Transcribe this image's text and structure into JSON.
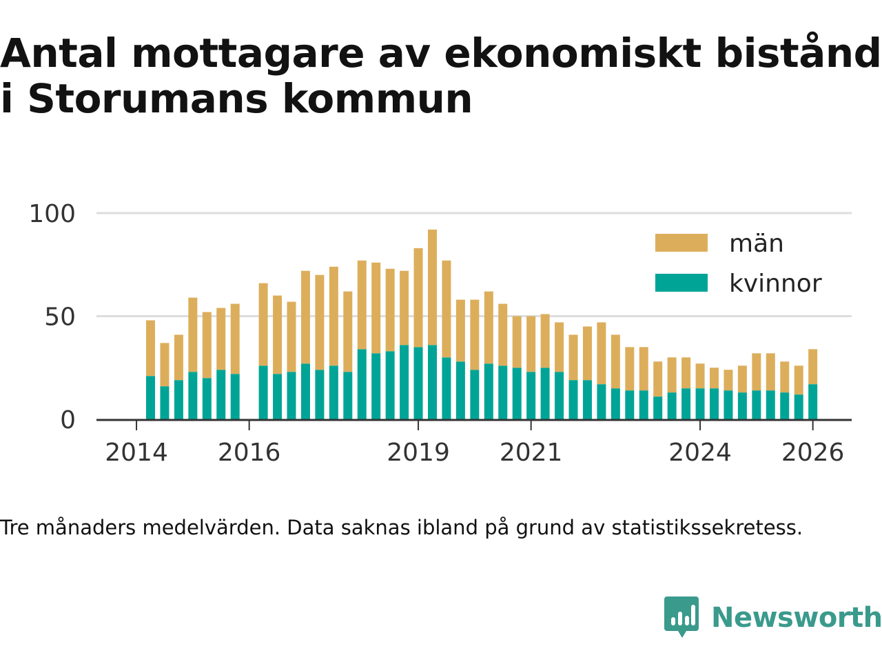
{
  "title": "Antal mottagare av ekonomiskt bistånd i Storumans kommun",
  "note": "Tre månaders medelvärden. Data saknas ibland på grund av statistikssekretess.",
  "brand": {
    "name": "Newsworthy",
    "color": "#3a9a8c",
    "icon": "newsworthy-logo-icon"
  },
  "colors": {
    "men": "#dcae5c",
    "women": "#00a496",
    "grid": "#dddddd",
    "axis": "#333333"
  },
  "chart_data": {
    "type": "bar",
    "stacked": true,
    "title": "Antal mottagare av ekonomiskt bistånd i Storumans kommun",
    "xlabel": "",
    "ylabel": "",
    "ylim": [
      0,
      100
    ],
    "yticks": [
      0,
      50,
      100
    ],
    "xticks": [
      "2014",
      "2016",
      "2019",
      "2021",
      "2024",
      "2026"
    ],
    "legend_position": "top-right",
    "grid": true,
    "categories": [
      "2014-Q2",
      "2014-Q3",
      "2014-Q4",
      "2015-Q1",
      "2015-Q2",
      "2015-Q3",
      "2015-Q4",
      "2016-Q1",
      "2016-Q2",
      "2016-Q3",
      "2016-Q4",
      "2017-Q1",
      "2017-Q2",
      "2017-Q3",
      "2017-Q4",
      "2018-Q1",
      "2018-Q2",
      "2018-Q3",
      "2018-Q4",
      "2019-Q1",
      "2019-Q2",
      "2019-Q3",
      "2019-Q4",
      "2020-Q1",
      "2020-Q2",
      "2020-Q3",
      "2020-Q4",
      "2021-Q1",
      "2021-Q2",
      "2021-Q3",
      "2021-Q4",
      "2022-Q1",
      "2022-Q2",
      "2022-Q3",
      "2022-Q4",
      "2023-Q1",
      "2023-Q2",
      "2023-Q3",
      "2023-Q4",
      "2024-Q1",
      "2024-Q2",
      "2024-Q3",
      "2024-Q4",
      "2025-Q1",
      "2025-Q2",
      "2025-Q3",
      "2025-Q4",
      "2026-Q1"
    ],
    "series": [
      {
        "name": "kvinnor",
        "values": [
          21,
          16,
          19,
          23,
          20,
          24,
          22,
          null,
          26,
          22,
          23,
          27,
          24,
          26,
          23,
          34,
          32,
          33,
          36,
          35,
          36,
          30,
          28,
          24,
          27,
          26,
          25,
          23,
          25,
          23,
          19,
          19,
          17,
          15,
          14,
          14,
          11,
          13,
          15,
          15,
          15,
          14,
          13,
          14,
          14,
          13,
          12,
          17
        ]
      },
      {
        "name": "män",
        "values": [
          27,
          21,
          22,
          36,
          32,
          30,
          34,
          null,
          40,
          38,
          34,
          45,
          46,
          48,
          39,
          43,
          44,
          40,
          36,
          48,
          56,
          47,
          30,
          34,
          35,
          30,
          25,
          27,
          26,
          24,
          22,
          26,
          30,
          26,
          21,
          21,
          17,
          17,
          15,
          12,
          10,
          10,
          13,
          18,
          18,
          15,
          14,
          17
        ]
      }
    ]
  }
}
